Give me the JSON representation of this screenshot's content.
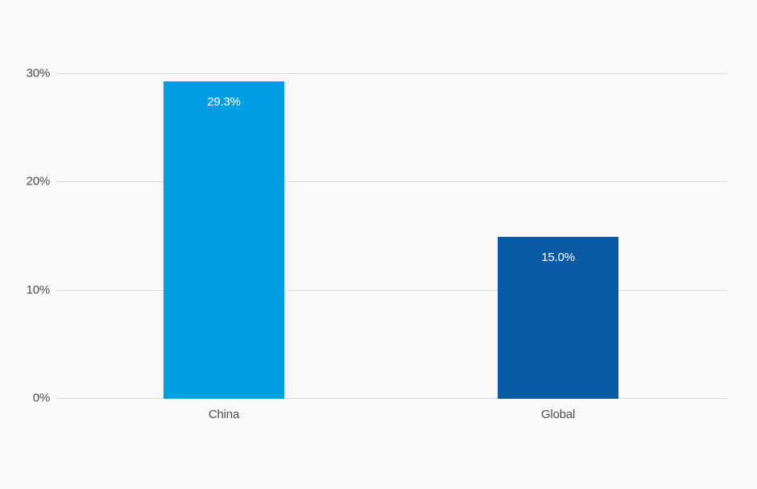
{
  "page": {
    "background_color": "#f9f9f9",
    "gridline_color": "#dcdcdc",
    "axis_label_color": "#4c4c4c",
    "value_label_color": "#ffffff"
  },
  "chart_data": {
    "type": "bar",
    "title": "",
    "xlabel": "",
    "ylabel": "",
    "categories": [
      "China",
      "Global"
    ],
    "values": [
      29.3,
      15.0
    ],
    "value_labels": [
      "29.3%",
      "15.0%"
    ],
    "colors": [
      "#009fe3",
      "#0b5aa5"
    ],
    "ylim": [
      0,
      30
    ],
    "yticks": [
      0,
      10,
      20,
      30
    ],
    "ytick_labels": [
      "0%",
      "10%",
      "20%",
      "30%"
    ],
    "grid": "horizontal",
    "legend": "none"
  }
}
